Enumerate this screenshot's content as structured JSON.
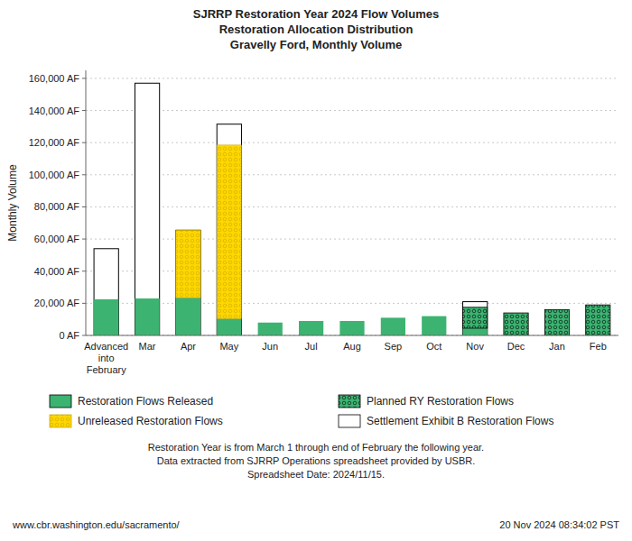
{
  "chart_data": {
    "type": "bar",
    "title": "SJRRP Restoration Year 2024 Flow Volumes\nRestoration Allocation Distribution\nGravelly Ford, Monthly Volume",
    "ylabel": "Monthly Volume",
    "categories": [
      "Advanced\ninto\nFebruary",
      "Mar",
      "Apr",
      "May",
      "Jun",
      "Jul",
      "Aug",
      "Sep",
      "Oct",
      "Nov",
      "Dec",
      "Jan",
      "Feb"
    ],
    "stacked": true,
    "series": [
      {
        "name": "Restoration Flows Released",
        "color": "#3cb371",
        "values": [
          22500,
          23000,
          23500,
          10500,
          8000,
          9000,
          9000,
          11000,
          12000,
          4500,
          0,
          0,
          0
        ]
      },
      {
        "name": "Unreleased Restoration Flows",
        "color": "#ffd700",
        "values": [
          0,
          0,
          42000,
          108000,
          0,
          0,
          0,
          0,
          0,
          0,
          0,
          0,
          0
        ]
      },
      {
        "name": "Planned RY Restoration Flows",
        "color": "#3cb371",
        "values": [
          0,
          0,
          0,
          0,
          0,
          0,
          0,
          0,
          0,
          13000,
          14000,
          16000,
          19000
        ]
      },
      {
        "name": "Settlement Exhibit B Restoration Flows",
        "color": "#ffffff",
        "type": "outline",
        "values": [
          54000,
          157000,
          65500,
          131500,
          0,
          0,
          0,
          0,
          0,
          21000,
          0,
          0,
          0
        ]
      }
    ],
    "ylim": [
      0,
      165000
    ],
    "yticks": [
      {
        "value": 0,
        "label": "0 AF"
      },
      {
        "value": 20000,
        "label": "20,000 AF"
      },
      {
        "value": 40000,
        "label": "40,000 AF"
      },
      {
        "value": 60000,
        "label": "60,000 AF"
      },
      {
        "value": 80000,
        "label": "80,000 AF"
      },
      {
        "value": 100000,
        "label": "100,000 AF"
      },
      {
        "value": 120000,
        "label": "120,000 AF"
      },
      {
        "value": 140000,
        "label": "140,000 AF"
      },
      {
        "value": 160000,
        "label": "160,000 AF"
      }
    ],
    "grid": true,
    "legend": "bottom",
    "annotations": [
      "Restoration Year is from March 1 through end of February the following year.",
      "Data extracted from SJRRP Operations spreadsheet provided by USBR.",
      "Spreadsheet Date: 2024/11/15.",
      "www.cbr.washington.edu/sacramento/",
      "20 Nov 2024 08:34:02 PST"
    ]
  }
}
